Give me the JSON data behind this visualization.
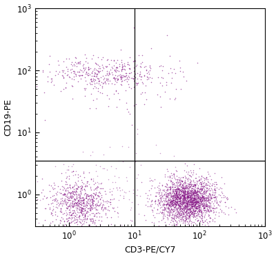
{
  "xlabel": "CD3-PE/CY7",
  "ylabel": "CD19-PE",
  "xlim": [
    0.3,
    1000
  ],
  "ylim": [
    0.3,
    1000
  ],
  "dot_color": "#7B007B",
  "dot_alpha": 0.6,
  "dot_size": 1.2,
  "quadrant_x": 10,
  "quadrant_y": 3.5,
  "background_color": "#ffffff",
  "figsize": [
    4.0,
    3.74
  ],
  "dpi": 100,
  "populations": {
    "cd19pos_cd3neg": {
      "n": 350,
      "x_center_log": 0.5,
      "x_spread_log": 0.42,
      "y_center_log": 1.95,
      "y_spread_log": 0.13
    },
    "cd19pos_cd3neg_tail": {
      "n": 80,
      "x_center_log": 0.6,
      "x_spread_log": 0.5,
      "y_center_log": 1.75,
      "y_spread_log": 0.25
    },
    "cd19neg_cd3neg": {
      "n": 700,
      "x_center_log": 0.15,
      "x_spread_log": 0.22,
      "y_center_log": -0.15,
      "y_spread_log": 0.2
    },
    "cd19neg_cd3pos": {
      "n": 2200,
      "x_center_log": 1.8,
      "x_spread_log": 0.22,
      "y_center_log": -0.1,
      "y_spread_log": 0.18
    },
    "cd19pos_cd3pos": {
      "n": 30,
      "x_center_log": 1.35,
      "x_spread_log": 0.28,
      "y_center_log": 1.92,
      "y_spread_log": 0.2
    },
    "scattered_lower_mid": {
      "n": 120,
      "x_center_log": 0.55,
      "x_spread_log": 0.55,
      "y_center_log": 0.15,
      "y_spread_log": 0.35
    }
  }
}
